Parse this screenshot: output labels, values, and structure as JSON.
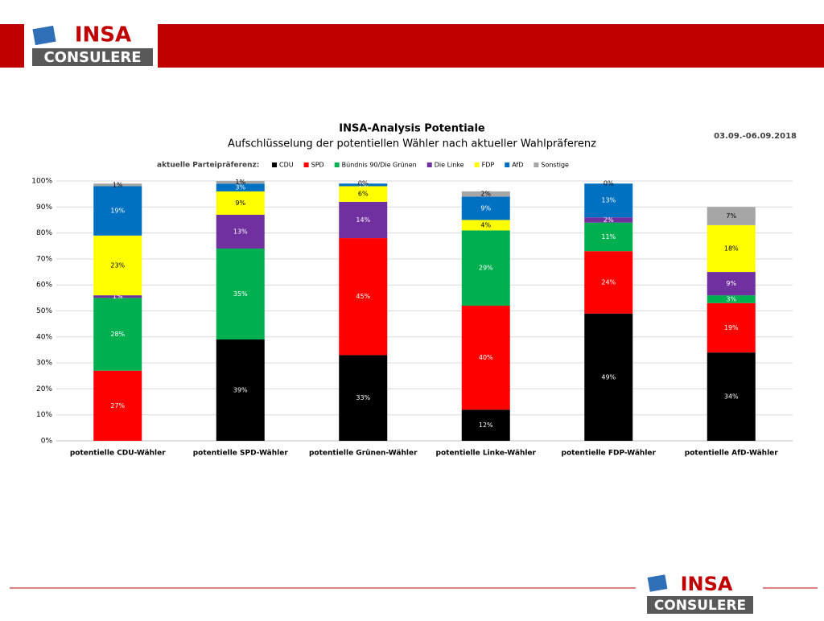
{
  "logo": {
    "top": "INSA",
    "bottom": "CONSULERE"
  },
  "chart_data": {
    "type": "stacked_bar",
    "title": "INSA-Analysis Potentiale",
    "subtitle": "Aufschlüsselung der potentiellen Wähler nach aktueller Wahlpräferenz",
    "date": "03.09.-06.09.2018",
    "legend_title": "aktuelle Parteipräferenz:",
    "categories": [
      "potentielle CDU-Wähler",
      "potentielle SPD-Wähler",
      "potentielle Grünen-Wähler",
      "potentielle Linke-Wähler",
      "potentielle FDP-Wähler",
      "potentielle AfD-Wähler"
    ],
    "series": [
      {
        "name": "CDU",
        "color": "#000000",
        "label_color": "#ffffff",
        "values": [
          null,
          39,
          33,
          12,
          49,
          34
        ],
        "value_labels": [
          null,
          "39%",
          "33%",
          "12%",
          "49%",
          "34%"
        ]
      },
      {
        "name": "SPD",
        "color": "#ff0000",
        "label_color": "#ffffff",
        "values": [
          27,
          null,
          45,
          40,
          24,
          19
        ],
        "value_labels": [
          "27%",
          null,
          "45%",
          "40%",
          "24%",
          "19%"
        ]
      },
      {
        "name": "Bündnis 90/Die Grünen",
        "color": "#00b050",
        "label_color": "#ffffff",
        "values": [
          28,
          35,
          null,
          29,
          11,
          3
        ],
        "value_labels": [
          "28%",
          "35%",
          null,
          "29%",
          "11%",
          "3%"
        ]
      },
      {
        "name": "Die Linke",
        "color": "#7030a0",
        "label_color": "#ffffff",
        "values": [
          1,
          13,
          14,
          null,
          2,
          9
        ],
        "value_labels": [
          "1%",
          "13%",
          "14%",
          null,
          "2%",
          "9%"
        ]
      },
      {
        "name": "FDP",
        "color": "#ffff00",
        "label_color": "#000000",
        "values": [
          23,
          9,
          6,
          4,
          null,
          18
        ],
        "value_labels": [
          "23%",
          "9%",
          "6%",
          "4%",
          null,
          "18%"
        ]
      },
      {
        "name": "AfD",
        "color": "#0070c0",
        "label_color": "#ffffff",
        "values": [
          19,
          3,
          1,
          9,
          13,
          null
        ],
        "value_labels": [
          "19%",
          "3%",
          "1%",
          "9%",
          "13%",
          null
        ]
      },
      {
        "name": "Sonstige",
        "color": "#a6a6a6",
        "label_color": "#000000",
        "values": [
          1,
          1,
          0,
          2,
          0,
          7
        ],
        "value_labels": [
          "1%",
          "1%",
          "0%",
          "2%",
          "0%",
          "7%"
        ]
      }
    ],
    "ylim": [
      0,
      100
    ],
    "yticks": [
      {
        "value": 0,
        "label": "0%"
      },
      {
        "value": 10,
        "label": "10%"
      },
      {
        "value": 20,
        "label": "20%"
      },
      {
        "value": 30,
        "label": "30%"
      },
      {
        "value": 40,
        "label": "40%"
      },
      {
        "value": 50,
        "label": "50%"
      },
      {
        "value": 60,
        "label": "60%"
      },
      {
        "value": 70,
        "label": "70%"
      },
      {
        "value": 80,
        "label": "80%"
      },
      {
        "value": 90,
        "label": "90%"
      },
      {
        "value": 100,
        "label": "100%"
      }
    ],
    "grid": true
  }
}
